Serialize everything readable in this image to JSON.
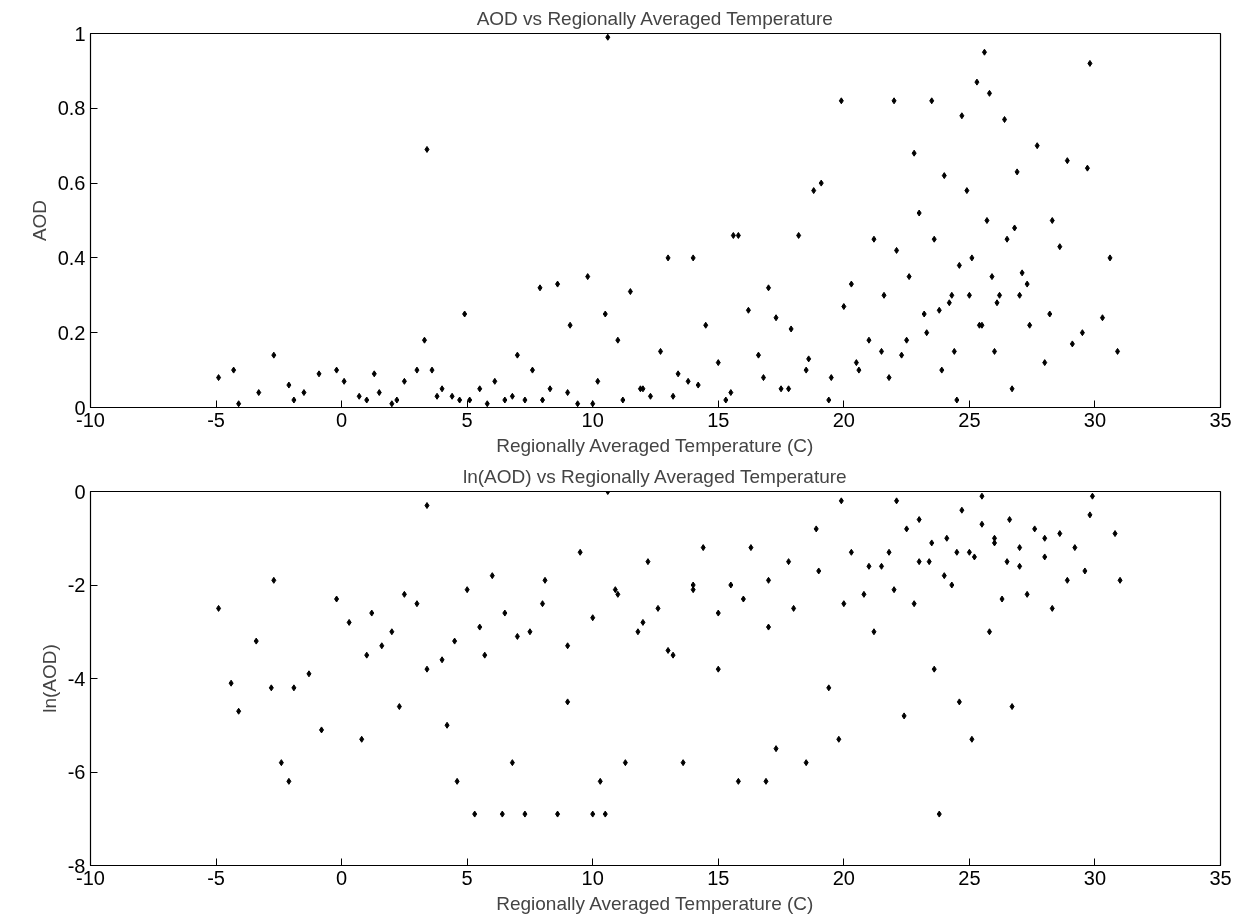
{
  "chart_data": [
    {
      "type": "scatter",
      "title": "AOD vs Regionally Averaged Temperature",
      "xlabel": "Regionally Averaged Temperature (C)",
      "ylabel": "AOD",
      "color": "#000000",
      "marker": "diamond",
      "grid": false,
      "xlim": [
        -10,
        35
      ],
      "ylim": [
        0,
        1
      ],
      "xticks": [
        -10,
        -5,
        0,
        5,
        10,
        15,
        20,
        25,
        30,
        35
      ],
      "yticks": [
        0,
        0.2,
        0.4,
        0.6,
        0.8,
        1
      ],
      "x": [
        -4.9,
        -4.3,
        -4.1,
        -3.3,
        -2.7,
        -2.1,
        -1.9,
        -1.5,
        -0.9,
        -0.2,
        0.1,
        0.7,
        1.3,
        1.5,
        2.2,
        2.5,
        3.0,
        3.4,
        3.3,
        3.6,
        4.0,
        4.4,
        4.9,
        5.1,
        5.5,
        6.1,
        6.5,
        7.0,
        7.3,
        7.6,
        7.9,
        8.3,
        8.6,
        9.1,
        9.4,
        9.8,
        10.2,
        10.6,
        10.5,
        11.0,
        11.5,
        11.9,
        12.3,
        12.7,
        13.0,
        13.4,
        13.8,
        14.0,
        14.5,
        15.0,
        15.3,
        15.6,
        15.8,
        16.2,
        16.6,
        17.0,
        17.3,
        17.5,
        17.9,
        18.2,
        18.6,
        18.8,
        19.1,
        19.4,
        19.9,
        20.0,
        20.3,
        20.6,
        21.0,
        21.2,
        21.6,
        22.0,
        22.3,
        22.6,
        22.8,
        23.0,
        23.3,
        23.5,
        23.6,
        23.9,
        24.0,
        24.3,
        24.5,
        24.7,
        24.9,
        25.1,
        25.3,
        25.4,
        25.6,
        25.7,
        25.8,
        26.0,
        26.2,
        26.4,
        26.5,
        26.7,
        26.9,
        27.1,
        27.4,
        27.7,
        28.0,
        28.3,
        28.6,
        28.9,
        29.1,
        29.5,
        29.8,
        29.7,
        30.3,
        30.6,
        30.9,
        1.0,
        2.0,
        3.8,
        4.7,
        5.8,
        6.8,
        8.0,
        9.0,
        10.0,
        11.2,
        12.0,
        13.2,
        14.2,
        15.5,
        16.8,
        17.8,
        18.5,
        19.5,
        20.5,
        21.5,
        22.5,
        23.2,
        24.2,
        25.0,
        25.9,
        27.0,
        28.2,
        22.1,
        23.8,
        24.6,
        25.5,
        26.1,
        27.3,
        21.8,
        24.4,
        26.8
      ],
      "values": [
        0.08,
        0.1,
        0.01,
        0.04,
        0.14,
        0.06,
        0.02,
        0.04,
        0.09,
        0.1,
        0.07,
        0.03,
        0.09,
        0.04,
        0.02,
        0.07,
        0.1,
        0.69,
        0.18,
        0.1,
        0.05,
        0.03,
        0.25,
        0.02,
        0.05,
        0.07,
        0.02,
        0.14,
        0.02,
        0.1,
        0.32,
        0.05,
        0.33,
        0.22,
        0.01,
        0.35,
        0.07,
        0.99,
        0.25,
        0.18,
        0.31,
        0.05,
        0.03,
        0.15,
        0.4,
        0.09,
        0.07,
        0.4,
        0.22,
        0.12,
        0.02,
        0.46,
        0.46,
        0.26,
        0.14,
        0.32,
        0.24,
        0.05,
        0.21,
        0.46,
        0.13,
        0.58,
        0.6,
        0.02,
        0.82,
        0.27,
        0.33,
        0.1,
        0.18,
        0.45,
        0.3,
        0.82,
        0.14,
        0.35,
        0.68,
        0.52,
        0.2,
        0.82,
        0.45,
        0.1,
        0.62,
        0.3,
        0.02,
        0.78,
        0.58,
        0.4,
        0.87,
        0.22,
        0.95,
        0.5,
        0.84,
        0.15,
        0.3,
        0.77,
        0.45,
        0.05,
        0.63,
        0.36,
        0.22,
        0.7,
        0.12,
        0.5,
        0.43,
        0.66,
        0.17,
        0.2,
        0.92,
        0.64,
        0.24,
        0.4,
        0.15,
        0.02,
        0.01,
        0.03,
        0.02,
        0.01,
        0.03,
        0.02,
        0.04,
        0.01,
        0.02,
        0.05,
        0.03,
        0.06,
        0.04,
        0.08,
        0.05,
        0.1,
        0.08,
        0.12,
        0.15,
        0.18,
        0.25,
        0.28,
        0.3,
        0.35,
        0.3,
        0.25,
        0.42,
        0.26,
        0.38,
        0.22,
        0.28,
        0.33,
        0.08,
        0.15,
        0.48
      ]
    },
    {
      "type": "scatter",
      "title": "ln(AOD) vs Regionally Averaged Temperature",
      "xlabel": "Regionally Averaged Temperature (C)",
      "ylabel": "ln(AOD)",
      "color": "#000000",
      "marker": "diamond",
      "grid": false,
      "xlim": [
        -10,
        35
      ],
      "ylim": [
        -8,
        0
      ],
      "xticks": [
        -10,
        -5,
        0,
        5,
        10,
        15,
        20,
        25,
        30,
        35
      ],
      "yticks": [
        -8,
        -6,
        -4,
        -2,
        0
      ],
      "x": [
        -4.9,
        -4.4,
        -4.1,
        -3.4,
        -2.8,
        -2.7,
        -2.4,
        -2.1,
        -1.9,
        -1.3,
        -0.8,
        -0.2,
        0.3,
        0.8,
        1.2,
        1.6,
        2.3,
        2.5,
        3.4,
        3.4,
        4.0,
        4.2,
        4.6,
        5.0,
        5.3,
        5.7,
        6.0,
        6.4,
        6.8,
        7.3,
        7.5,
        8.1,
        8.6,
        9.0,
        9.5,
        10.0,
        10.3,
        10.5,
        10.6,
        10.9,
        11.3,
        11.8,
        12.2,
        12.6,
        13.2,
        13.6,
        14.0,
        14.4,
        15.0,
        15.5,
        15.8,
        16.3,
        16.9,
        17.0,
        17.3,
        17.8,
        18.5,
        18.9,
        19.4,
        19.8,
        19.9,
        20.3,
        20.8,
        21.2,
        21.8,
        22.1,
        22.4,
        22.8,
        23.0,
        23.4,
        23.6,
        23.8,
        24.1,
        24.3,
        24.6,
        24.7,
        25.1,
        25.2,
        25.5,
        25.8,
        26.0,
        26.3,
        26.6,
        26.7,
        27.0,
        27.3,
        27.6,
        28.0,
        28.3,
        28.6,
        28.9,
        29.2,
        29.6,
        29.8,
        29.9,
        30.8,
        31.0,
        1.0,
        2.0,
        3.0,
        4.5,
        5.5,
        6.5,
        7.0,
        8.0,
        9.0,
        10.0,
        11.0,
        12.0,
        13.0,
        14.0,
        15.0,
        16.0,
        17.0,
        18.0,
        19.0,
        20.0,
        21.0,
        22.0,
        23.0,
        24.0,
        25.0,
        26.0,
        27.0,
        28.0,
        24.5,
        25.5,
        26.5,
        23.5,
        22.5,
        21.5
      ],
      "values": [
        -2.5,
        -4.1,
        -4.7,
        -3.2,
        -4.2,
        -1.9,
        -5.8,
        -6.2,
        -4.2,
        -3.9,
        -5.1,
        -2.3,
        -2.8,
        -5.3,
        -2.6,
        -3.3,
        -4.6,
        -2.2,
        -0.3,
        -3.8,
        -3.6,
        -5.0,
        -6.2,
        -2.1,
        -6.9,
        -3.5,
        -1.8,
        -6.9,
        -5.8,
        -6.9,
        -3.0,
        -1.9,
        -6.9,
        -4.5,
        -1.3,
        -6.9,
        -6.2,
        -6.9,
        0.0,
        -2.1,
        -5.8,
        -3.0,
        -1.5,
        -2.5,
        -3.5,
        -5.8,
        -2.0,
        -1.2,
        -3.8,
        -2.0,
        -6.2,
        -1.2,
        -6.2,
        -2.9,
        -5.5,
        -1.5,
        -5.8,
        -0.8,
        -4.2,
        -5.3,
        -0.2,
        -1.3,
        -2.2,
        -3.0,
        -1.3,
        -0.2,
        -4.8,
        -2.4,
        -0.6,
        -1.5,
        -3.8,
        -6.9,
        -1.0,
        -2.0,
        -4.5,
        -0.4,
        -5.3,
        -1.4,
        -0.1,
        -3.0,
        -1.0,
        -2.3,
        -0.6,
        -4.6,
        -1.6,
        -2.2,
        -0.8,
        -1.4,
        -2.5,
        -0.9,
        -1.9,
        -1.2,
        -1.7,
        -0.5,
        -0.1,
        -0.9,
        -1.9,
        -3.5,
        -3.0,
        -2.4,
        -3.2,
        -2.9,
        -2.6,
        -3.1,
        -2.4,
        -3.3,
        -2.7,
        -2.2,
        -2.8,
        -3.4,
        -2.1,
        -2.6,
        -2.3,
        -1.9,
        -2.5,
        -1.7,
        -2.4,
        -1.6,
        -2.1,
        -1.5,
        -1.8,
        -1.3,
        -1.1,
        -1.2,
        -1.0,
        -1.3,
        -0.7,
        -1.5,
        -1.1,
        -0.8,
        -1.6
      ]
    }
  ]
}
